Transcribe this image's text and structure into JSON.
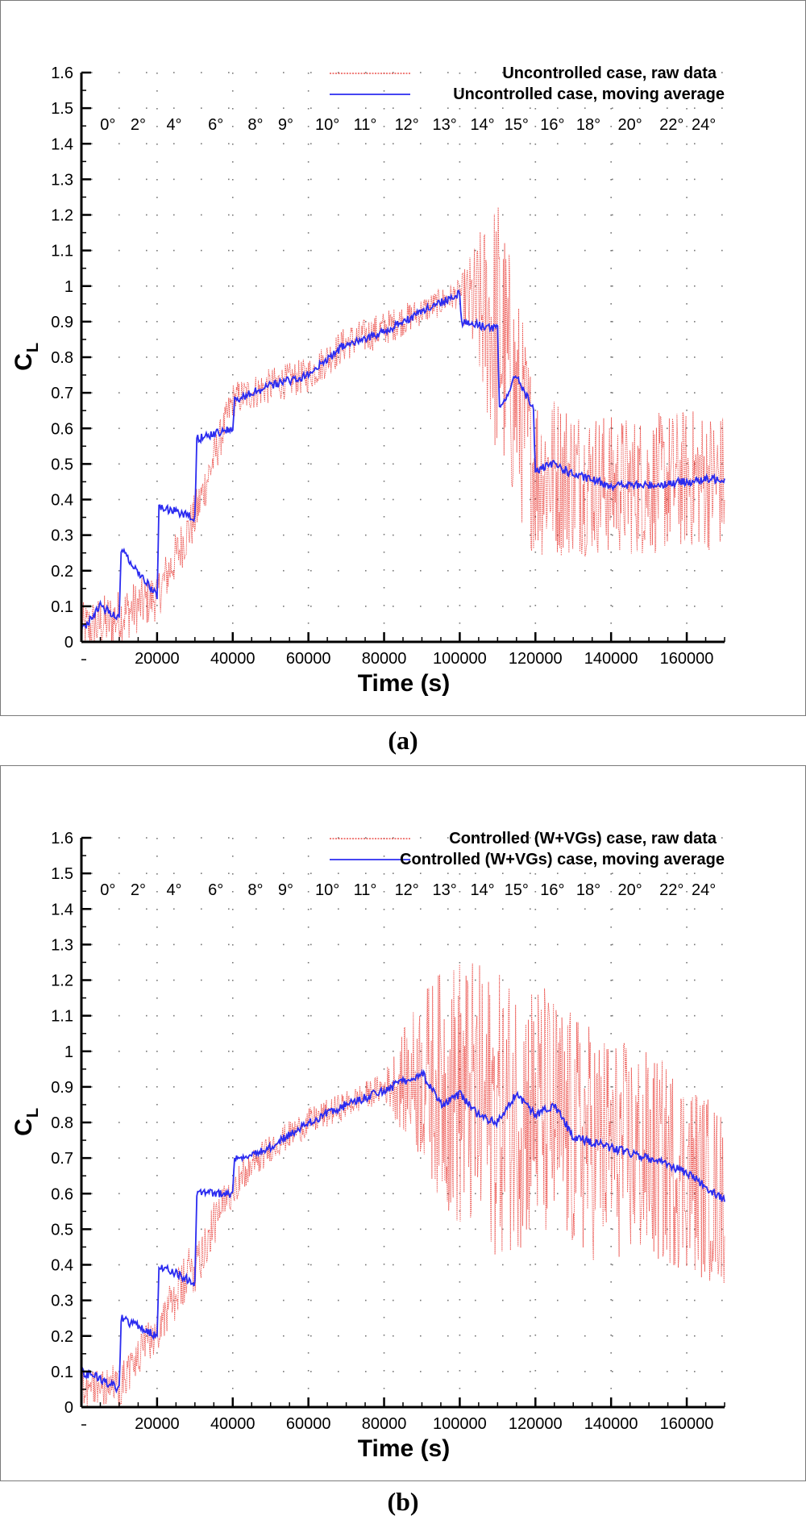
{
  "figure": {
    "caption_a": "(a)",
    "caption_b": "(b)"
  },
  "chart_data": [
    {
      "type": "line",
      "panel": "a",
      "xlabel": "Time (s)",
      "ylabel": "C",
      "ylabel_sub": "L",
      "xlim": [
        0,
        170000
      ],
      "ylim": [
        0,
        1.6
      ],
      "x_ticks": [
        20000,
        40000,
        60000,
        80000,
        100000,
        120000,
        140000,
        160000
      ],
      "y_ticks": [
        0,
        0.1,
        0.2,
        0.3,
        0.4,
        0.5,
        0.6,
        0.7,
        0.8,
        0.9,
        1,
        1.1,
        1.2,
        1.3,
        1.4,
        1.5,
        1.6
      ],
      "grid": "dotted",
      "legend_position": "top-right",
      "angle_labels": [
        "0°",
        "2°",
        "4°",
        "6°",
        "8°",
        "9°",
        "10°",
        "11°",
        "12°",
        "13°",
        "14°",
        "15°",
        "16°",
        "18°",
        "20°",
        "22°",
        "24°"
      ],
      "angle_label_x": [
        7000,
        15000,
        24500,
        35500,
        46000,
        54000,
        65000,
        75000,
        86000,
        96000,
        106000,
        115000,
        124500,
        134000,
        145000,
        156000,
        164500
      ],
      "series": [
        {
          "name": "Uncontrolled case, raw data",
          "style": "dotted",
          "color": "#e8302a",
          "x": [
            0,
            10000,
            20000,
            30000,
            40000,
            50000,
            60000,
            70000,
            80000,
            90000,
            100000,
            110000,
            120000,
            130000,
            140000,
            150000,
            160000,
            170000
          ],
          "values": [
            0.03,
            0.07,
            0.13,
            0.35,
            0.68,
            0.72,
            0.75,
            0.84,
            0.88,
            0.93,
            0.98,
            0.88,
            0.48,
            0.46,
            0.44,
            0.44,
            0.46,
            0.45
          ],
          "amplitude": [
            0.08,
            0.08,
            0.07,
            0.07,
            0.05,
            0.05,
            0.05,
            0.05,
            0.05,
            0.04,
            0.04,
            0.4,
            0.25,
            0.22,
            0.2,
            0.2,
            0.2,
            0.2
          ]
        },
        {
          "name": "Uncontrolled case, moving average",
          "style": "solid",
          "color": "#2b2bf0",
          "x": [
            0,
            5000,
            10000,
            10500,
            20000,
            20500,
            30000,
            30500,
            40000,
            40500,
            50000,
            60000,
            70000,
            80000,
            90000,
            100000,
            100500,
            110000,
            110500,
            115000,
            119500,
            120000,
            125000,
            130000,
            140000,
            150000,
            160000,
            170000
          ],
          "values": [
            0.03,
            0.1,
            0.07,
            0.26,
            0.13,
            0.38,
            0.35,
            0.57,
            0.6,
            0.68,
            0.72,
            0.75,
            0.84,
            0.87,
            0.93,
            0.98,
            0.9,
            0.88,
            0.65,
            0.75,
            0.65,
            0.48,
            0.5,
            0.47,
            0.44,
            0.44,
            0.45,
            0.46
          ]
        }
      ]
    },
    {
      "type": "line",
      "panel": "b",
      "xlabel": "Time (s)",
      "ylabel": "C",
      "ylabel_sub": "L",
      "xlim": [
        0,
        170000
      ],
      "ylim": [
        0,
        1.6
      ],
      "x_ticks": [
        20000,
        40000,
        60000,
        80000,
        100000,
        120000,
        140000,
        160000
      ],
      "y_ticks": [
        0,
        0.1,
        0.2,
        0.3,
        0.4,
        0.5,
        0.6,
        0.7,
        0.8,
        0.9,
        1,
        1.1,
        1.2,
        1.3,
        1.4,
        1.5,
        1.6
      ],
      "grid": "dotted",
      "legend_position": "top-right",
      "angle_labels": [
        "0°",
        "2°",
        "4°",
        "6°",
        "8°",
        "9°",
        "10°",
        "11°",
        "12°",
        "13°",
        "14°",
        "15°",
        "16°",
        "18°",
        "20°",
        "22°",
        "24°"
      ],
      "angle_label_x": [
        7000,
        15000,
        24500,
        35500,
        46000,
        54000,
        65000,
        75000,
        86000,
        96000,
        106000,
        115000,
        124500,
        134000,
        145000,
        156000,
        164500
      ],
      "series": [
        {
          "name": "Controlled (W+VGs) case, raw data",
          "style": "dotted",
          "color": "#e8302a",
          "x": [
            0,
            10000,
            20000,
            30000,
            40000,
            50000,
            60000,
            70000,
            80000,
            90000,
            100000,
            110000,
            120000,
            130000,
            140000,
            150000,
            160000,
            170000
          ],
          "values": [
            0.06,
            0.06,
            0.22,
            0.4,
            0.62,
            0.73,
            0.8,
            0.85,
            0.9,
            0.93,
            0.88,
            0.82,
            0.84,
            0.76,
            0.73,
            0.7,
            0.66,
            0.58
          ],
          "amplitude": [
            0.06,
            0.06,
            0.06,
            0.08,
            0.05,
            0.04,
            0.04,
            0.04,
            0.04,
            0.25,
            0.4,
            0.4,
            0.38,
            0.35,
            0.32,
            0.3,
            0.28,
            0.25
          ]
        },
        {
          "name": "Controlled (W+VGs) case, moving average",
          "style": "solid",
          "color": "#2b2bf0",
          "x": [
            0,
            5000,
            10000,
            10500,
            20000,
            20500,
            30000,
            30500,
            40000,
            40500,
            50000,
            60000,
            70000,
            80000,
            90000,
            95000,
            100000,
            105000,
            110000,
            115000,
            120000,
            125000,
            130000,
            140000,
            150000,
            160000,
            170000
          ],
          "values": [
            0.1,
            0.08,
            0.05,
            0.25,
            0.2,
            0.4,
            0.35,
            0.6,
            0.6,
            0.7,
            0.73,
            0.8,
            0.85,
            0.89,
            0.94,
            0.85,
            0.88,
            0.82,
            0.8,
            0.88,
            0.82,
            0.85,
            0.76,
            0.73,
            0.7,
            0.66,
            0.58
          ]
        }
      ]
    }
  ]
}
